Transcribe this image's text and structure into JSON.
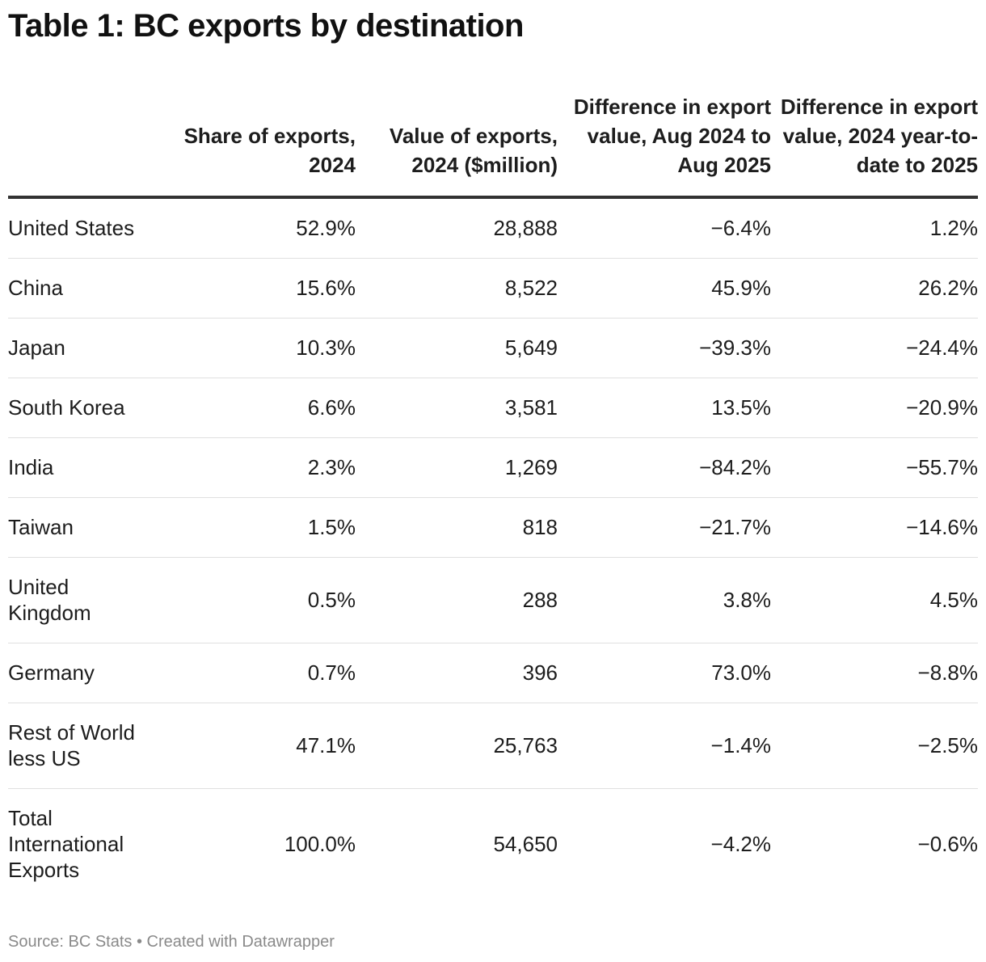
{
  "title": "Table 1: BC exports by destination",
  "footer": "Source: BC Stats • Created with Datawrapper",
  "chart_data": {
    "type": "table",
    "title": "Table 1: BC exports by destination",
    "columns": [
      "",
      "Share of exports, 2024",
      "Value of exports, 2024 ($million)",
      "Difference in export value, Aug 2024 to Aug 2025",
      "Difference in export value, 2024 year-to-date to 2025"
    ],
    "rows": [
      [
        "United States",
        "52.9%",
        "28,888",
        "−6.4%",
        "1.2%"
      ],
      [
        "China",
        "15.6%",
        "8,522",
        "45.9%",
        "26.2%"
      ],
      [
        "Japan",
        "10.3%",
        "5,649",
        "−39.3%",
        "−24.4%"
      ],
      [
        "South Korea",
        "6.6%",
        "3,581",
        "13.5%",
        "−20.9%"
      ],
      [
        "India",
        "2.3%",
        "1,269",
        "−84.2%",
        "−55.7%"
      ],
      [
        "Taiwan",
        "1.5%",
        "818",
        "−21.7%",
        "−14.6%"
      ],
      [
        "United Kingdom",
        "0.5%",
        "288",
        "3.8%",
        "4.5%"
      ],
      [
        "Germany",
        "0.7%",
        "396",
        "73.0%",
        "−8.8%"
      ],
      [
        "Rest of World less US",
        "47.1%",
        "25,763",
        "−1.4%",
        "−2.5%"
      ],
      [
        "Total International Exports",
        "100.0%",
        "54,650",
        "−4.2%",
        "−0.6%"
      ]
    ],
    "source": "BC Stats"
  }
}
